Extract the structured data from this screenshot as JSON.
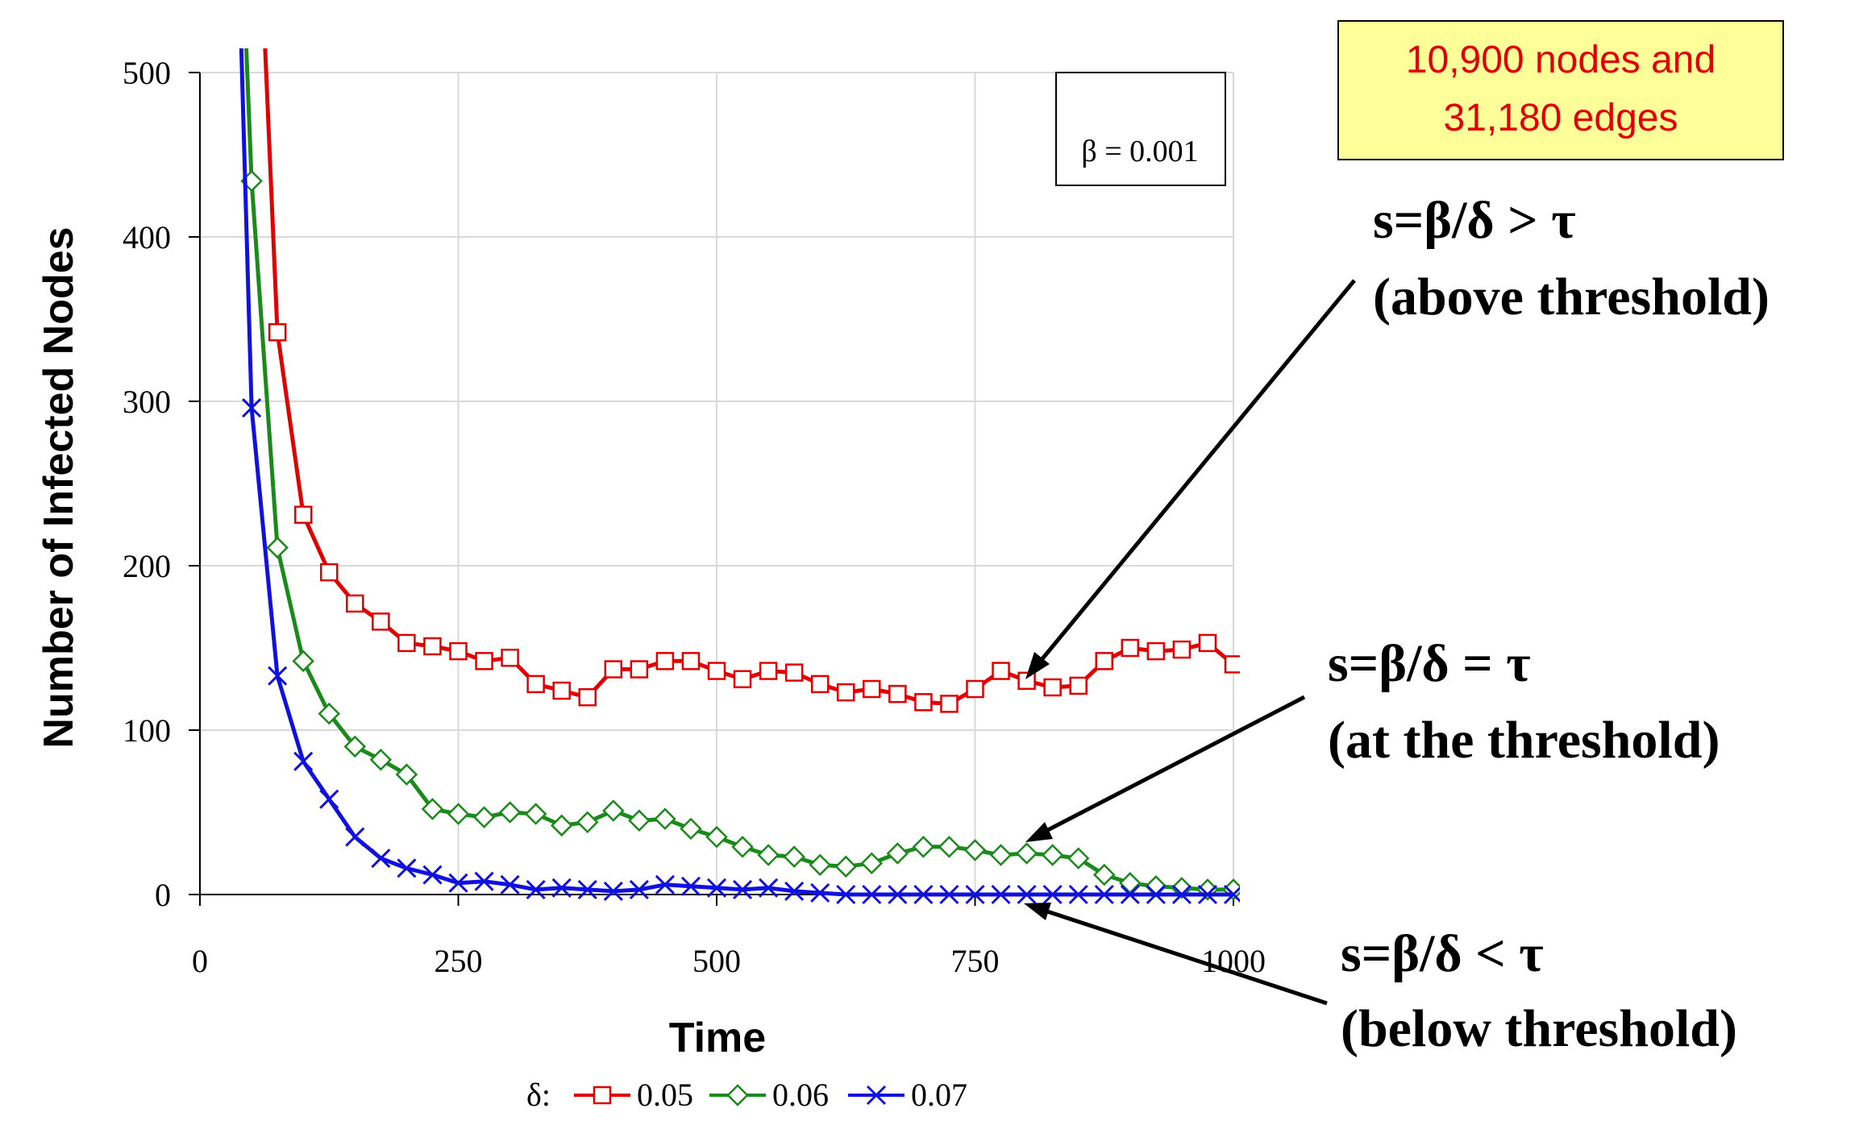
{
  "chart_data": {
    "type": "line",
    "xlabel": "Time",
    "ylabel": "Number of Infected Nodes",
    "xlim": [
      0,
      1000
    ],
    "ylim": [
      0,
      500
    ],
    "xticks": [
      0,
      250,
      500,
      750,
      1000
    ],
    "yticks": [
      0,
      100,
      200,
      300,
      400,
      500
    ],
    "grid": true,
    "param_label": "β = 0.001",
    "legend": {
      "prefix": "δ:",
      "placement": "bottom"
    },
    "series": [
      {
        "name": "0.05",
        "color": "#e00000",
        "marker": "square",
        "points": [
          [
            60,
            560
          ],
          [
            75,
            342
          ],
          [
            100,
            231
          ],
          [
            125,
            196
          ],
          [
            150,
            177
          ],
          [
            175,
            166
          ],
          [
            200,
            153
          ],
          [
            225,
            151
          ],
          [
            250,
            148
          ],
          [
            275,
            142
          ],
          [
            300,
            144
          ],
          [
            325,
            128
          ],
          [
            350,
            124
          ],
          [
            375,
            120
          ],
          [
            400,
            137
          ],
          [
            425,
            137
          ],
          [
            450,
            142
          ],
          [
            475,
            142
          ],
          [
            500,
            136
          ],
          [
            525,
            131
          ],
          [
            550,
            136
          ],
          [
            575,
            135
          ],
          [
            600,
            128
          ],
          [
            625,
            123
          ],
          [
            650,
            125
          ],
          [
            675,
            122
          ],
          [
            700,
            117
          ],
          [
            725,
            116
          ],
          [
            750,
            125
          ],
          [
            775,
            136
          ],
          [
            800,
            130
          ],
          [
            825,
            126
          ],
          [
            850,
            127
          ],
          [
            875,
            142
          ],
          [
            900,
            150
          ],
          [
            925,
            148
          ],
          [
            950,
            149
          ],
          [
            975,
            153
          ],
          [
            1000,
            140
          ]
        ]
      },
      {
        "name": "0.06",
        "color": "#1a8a1a",
        "marker": "diamond",
        "points": [
          [
            42,
            560
          ],
          [
            50,
            434
          ],
          [
            75,
            211
          ],
          [
            100,
            142
          ],
          [
            125,
            110
          ],
          [
            150,
            90
          ],
          [
            175,
            82
          ],
          [
            200,
            73
          ],
          [
            225,
            52
          ],
          [
            250,
            49
          ],
          [
            275,
            47
          ],
          [
            300,
            50
          ],
          [
            325,
            49
          ],
          [
            350,
            42
          ],
          [
            375,
            44
          ],
          [
            400,
            51
          ],
          [
            425,
            45
          ],
          [
            450,
            46
          ],
          [
            475,
            40
          ],
          [
            500,
            35
          ],
          [
            525,
            29
          ],
          [
            550,
            24
          ],
          [
            575,
            23
          ],
          [
            600,
            18
          ],
          [
            625,
            17
          ],
          [
            650,
            19
          ],
          [
            675,
            25
          ],
          [
            700,
            29
          ],
          [
            725,
            29
          ],
          [
            750,
            27
          ],
          [
            775,
            24
          ],
          [
            800,
            25
          ],
          [
            825,
            24
          ],
          [
            850,
            22
          ],
          [
            875,
            12
          ],
          [
            900,
            7
          ],
          [
            925,
            5
          ],
          [
            950,
            4
          ],
          [
            975,
            3
          ],
          [
            1000,
            3
          ]
        ]
      },
      {
        "name": "0.07",
        "color": "#1010e0",
        "marker": "x",
        "points": [
          [
            38,
            560
          ],
          [
            50,
            296
          ],
          [
            75,
            133
          ],
          [
            100,
            81
          ],
          [
            125,
            58
          ],
          [
            150,
            35
          ],
          [
            175,
            22
          ],
          [
            200,
            16
          ],
          [
            225,
            12
          ],
          [
            250,
            7
          ],
          [
            275,
            8
          ],
          [
            300,
            6
          ],
          [
            325,
            3
          ],
          [
            350,
            4
          ],
          [
            375,
            3
          ],
          [
            400,
            2
          ],
          [
            425,
            3
          ],
          [
            450,
            6
          ],
          [
            475,
            5
          ],
          [
            500,
            4
          ],
          [
            525,
            3
          ],
          [
            550,
            4
          ],
          [
            575,
            2
          ],
          [
            600,
            1
          ],
          [
            625,
            0
          ],
          [
            650,
            0
          ],
          [
            675,
            0
          ],
          [
            700,
            0
          ],
          [
            725,
            0
          ],
          [
            750,
            0
          ],
          [
            775,
            0
          ],
          [
            800,
            0
          ],
          [
            825,
            0
          ],
          [
            850,
            0
          ],
          [
            875,
            0
          ],
          [
            900,
            0
          ],
          [
            925,
            0
          ],
          [
            950,
            0
          ],
          [
            975,
            0
          ],
          [
            1000,
            0
          ]
        ]
      }
    ]
  },
  "info_box": {
    "line1": "10,900 nodes and",
    "line2": "31,180 edges",
    "bg": "#ffff99"
  },
  "annotations": {
    "above": {
      "line1": "s=β/δ > τ",
      "line2": "(above threshold)"
    },
    "at": {
      "line1": "s=β/δ = τ",
      "line2": "(at the threshold)"
    },
    "below": {
      "line1": "s=β/δ < τ",
      "line2": "(below threshold)"
    }
  }
}
